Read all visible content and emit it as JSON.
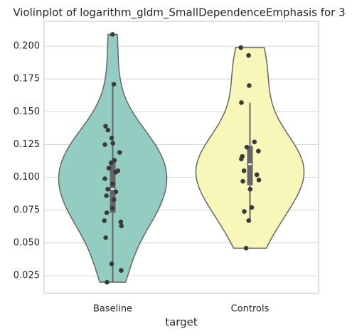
{
  "chart_data": {
    "type": "violin",
    "title": "Violinplot of logarithm_gldm_SmallDependenceEmphasis for 3",
    "xlabel": "target",
    "categories": [
      "Baseline",
      "Controls"
    ],
    "colors": [
      "#93ccc1",
      "#f7f7b9"
    ],
    "ylim": [
      0.0115,
      0.219
    ],
    "yticks": [
      0.025,
      {
        "value": 0.05,
        "label": "0.050"
      },
      0.075,
      {
        "value": 0.1,
        "label": "0.100"
      },
      0.125,
      {
        "value": 0.15,
        "label": "0.150"
      },
      0.175,
      {
        "value": 0.2,
        "label": "0.200"
      }
    ],
    "grid": true,
    "points": [
      [
        0.209,
        0.171,
        0.139,
        0.136,
        0.13,
        0.126,
        0.125,
        0.119,
        0.113,
        0.111,
        0.107,
        0.105,
        0.104,
        0.099,
        0.095,
        0.091,
        0.089,
        0.086,
        0.083,
        0.0765,
        0.073,
        0.067,
        0.066,
        0.063,
        0.054,
        0.034,
        0.029,
        0.02
      ],
      [
        0.199,
        0.193,
        0.17,
        0.157,
        0.127,
        0.123,
        0.12,
        0.116,
        0.114,
        0.105,
        0.102,
        0.098,
        0.097,
        0.091,
        0.077,
        0.074,
        0.067,
        0.046
      ]
    ],
    "whisker_low": [
      0.02,
      0.067
    ],
    "q1": [
      0.073,
      0.094
    ],
    "median": [
      0.091,
      0.11
    ],
    "q3": [
      0.113,
      0.124
    ],
    "whisker_high": [
      0.171,
      0.157
    ]
  }
}
